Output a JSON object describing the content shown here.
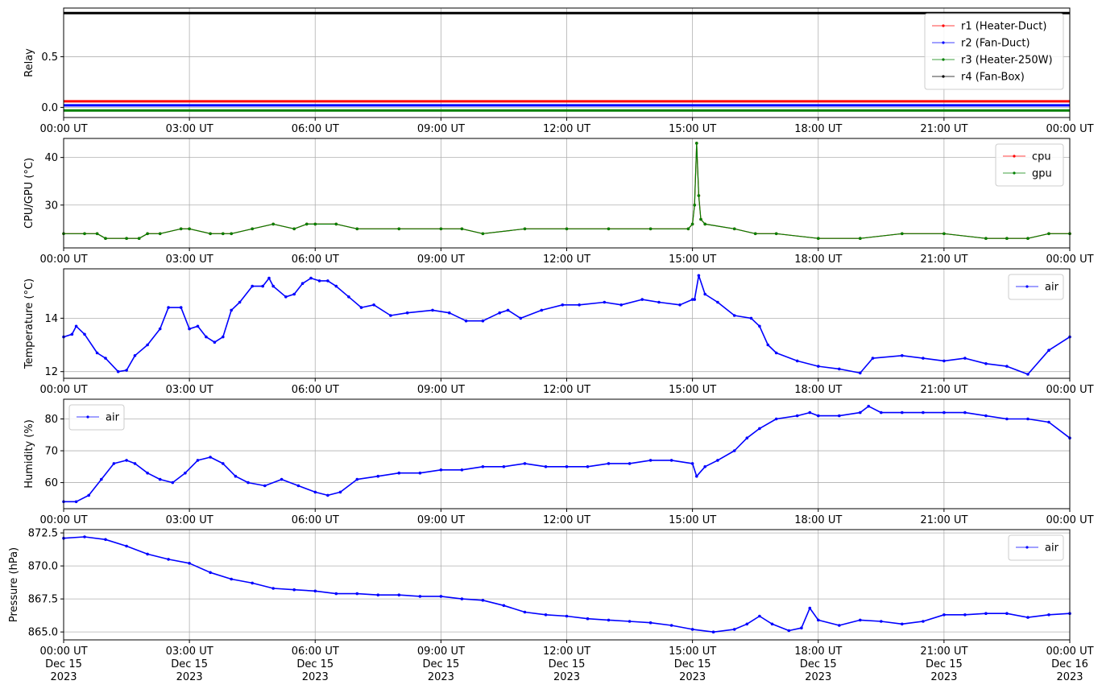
{
  "chart_data": [
    {
      "type": "line",
      "ylabel": "Relay",
      "xlabel": "",
      "title": "",
      "ylim": [
        -0.1,
        0.98
      ],
      "yticks": [
        "0.0",
        "0.5"
      ],
      "ytick_values": [
        0.0,
        0.5
      ],
      "xticks": [
        "00:00 UT",
        "03:00 UT",
        "06:00 UT",
        "09:00 UT",
        "12:00 UT",
        "15:00 UT",
        "18:00 UT",
        "21:00 UT",
        "00:00 UT"
      ],
      "xlim_hours": [
        0,
        24
      ],
      "grid": true,
      "legend_position": "top-right",
      "series": [
        {
          "name": "r1 (Heater-Duct)",
          "color": "#ff0000",
          "x": [
            0,
            24
          ],
          "values": [
            0.06,
            0.06
          ]
        },
        {
          "name": "r2 (Fan-Duct)",
          "color": "#0000ff",
          "x": [
            0,
            24
          ],
          "values": [
            0.02,
            0.02
          ]
        },
        {
          "name": "r3 (Heater-250W)",
          "color": "#008000",
          "x": [
            0,
            24
          ],
          "values": [
            -0.03,
            -0.03
          ]
        },
        {
          "name": "r4 (Fan-Box)",
          "color": "#000000",
          "x": [
            0,
            24
          ],
          "values": [
            0.93,
            0.93
          ]
        }
      ]
    },
    {
      "type": "line",
      "ylabel": "CPU/GPU (°C)",
      "xlabel": "",
      "title": "",
      "ylim": [
        21,
        44
      ],
      "yticks": [
        "30",
        "40"
      ],
      "ytick_values": [
        30,
        40
      ],
      "xticks": [
        "00:00 UT",
        "03:00 UT",
        "06:00 UT",
        "09:00 UT",
        "12:00 UT",
        "15:00 UT",
        "18:00 UT",
        "21:00 UT",
        "00:00 UT"
      ],
      "xlim_hours": [
        0,
        24
      ],
      "grid": true,
      "legend_position": "top-right",
      "series": [
        {
          "name": "cpu",
          "color": "#ff0000",
          "x": [
            0,
            0.5,
            0.8,
            1.0,
            1.5,
            1.8,
            2.0,
            2.3,
            2.8,
            3.0,
            3.5,
            3.8,
            4.0,
            4.5,
            5.0,
            5.5,
            5.8,
            6.0,
            6.5,
            7.0,
            8.0,
            9.0,
            9.5,
            10.0,
            11.0,
            12.0,
            13.0,
            14.0,
            14.9,
            15.0,
            15.05,
            15.1,
            15.15,
            15.2,
            15.3,
            16.0,
            16.5,
            17.0,
            18.0,
            19.0,
            20.0,
            21.0,
            22.0,
            22.5,
            23.0,
            23.5,
            24.0
          ],
          "values": [
            24,
            24,
            24,
            23,
            23,
            23,
            24,
            24,
            25,
            25,
            24,
            24,
            24,
            25,
            26,
            25,
            26,
            26,
            26,
            25,
            25,
            25,
            25,
            24,
            25,
            25,
            25,
            25,
            25,
            26,
            30,
            43,
            32,
            27,
            26,
            25,
            24,
            24,
            23,
            23,
            24,
            24,
            23,
            23,
            23,
            24,
            24
          ]
        },
        {
          "name": "gpu",
          "color": "#008000",
          "x": [
            0,
            0.5,
            0.8,
            1.0,
            1.5,
            1.8,
            2.0,
            2.3,
            2.8,
            3.0,
            3.5,
            3.8,
            4.0,
            4.5,
            5.0,
            5.5,
            5.8,
            6.0,
            6.5,
            7.0,
            8.0,
            9.0,
            9.5,
            10.0,
            11.0,
            12.0,
            13.0,
            14.0,
            14.9,
            15.0,
            15.05,
            15.1,
            15.15,
            15.2,
            15.3,
            16.0,
            16.5,
            17.0,
            18.0,
            19.0,
            20.0,
            21.0,
            22.0,
            22.5,
            23.0,
            23.5,
            24.0
          ],
          "values": [
            24,
            24,
            24,
            23,
            23,
            23,
            24,
            24,
            25,
            25,
            24,
            24,
            24,
            25,
            26,
            25,
            26,
            26,
            26,
            25,
            25,
            25,
            25,
            24,
            25,
            25,
            25,
            25,
            25,
            26,
            30,
            43,
            32,
            27,
            26,
            25,
            24,
            24,
            23,
            23,
            24,
            24,
            23,
            23,
            23,
            24,
            24
          ]
        }
      ]
    },
    {
      "type": "line",
      "ylabel": "Temperature (°C)",
      "xlabel": "",
      "title": "",
      "ylim": [
        11.75,
        15.85
      ],
      "yticks": [
        "12",
        "14"
      ],
      "ytick_values": [
        12,
        14
      ],
      "xticks": [
        "00:00 UT",
        "03:00 UT",
        "06:00 UT",
        "09:00 UT",
        "12:00 UT",
        "15:00 UT",
        "18:00 UT",
        "21:00 UT",
        "00:00 UT"
      ],
      "xlim_hours": [
        0,
        24
      ],
      "grid": true,
      "legend_position": "top-right",
      "series": [
        {
          "name": "air",
          "color": "#0000ff",
          "x": [
            0,
            0.2,
            0.3,
            0.5,
            0.8,
            1.0,
            1.3,
            1.5,
            1.7,
            2.0,
            2.3,
            2.5,
            2.8,
            3.0,
            3.2,
            3.4,
            3.6,
            3.8,
            4.0,
            4.2,
            4.5,
            4.75,
            4.9,
            5.0,
            5.3,
            5.5,
            5.7,
            5.9,
            6.1,
            6.3,
            6.5,
            6.8,
            7.1,
            7.4,
            7.8,
            8.2,
            8.8,
            9.2,
            9.6,
            10.0,
            10.4,
            10.6,
            10.9,
            11.4,
            11.9,
            12.3,
            12.9,
            13.3,
            13.8,
            14.2,
            14.7,
            15.0,
            15.05,
            15.15,
            15.3,
            15.6,
            16.0,
            16.4,
            16.6,
            16.8,
            17.0,
            17.5,
            18.0,
            18.5,
            19.0,
            19.3,
            20.0,
            20.5,
            21.0,
            21.5,
            22.0,
            22.5,
            23.0,
            23.5,
            24.0
          ],
          "values": [
            13.3,
            13.4,
            13.7,
            13.4,
            12.7,
            12.5,
            12.0,
            12.05,
            12.6,
            13.0,
            13.6,
            14.4,
            14.4,
            13.6,
            13.7,
            13.3,
            13.1,
            13.3,
            14.3,
            14.6,
            15.2,
            15.2,
            15.5,
            15.2,
            14.8,
            14.9,
            15.3,
            15.5,
            15.4,
            15.4,
            15.2,
            14.8,
            14.4,
            14.5,
            14.1,
            14.2,
            14.3,
            14.2,
            13.9,
            13.9,
            14.2,
            14.3,
            14.0,
            14.3,
            14.5,
            14.5,
            14.6,
            14.5,
            14.7,
            14.6,
            14.5,
            14.7,
            14.7,
            15.6,
            14.9,
            14.6,
            14.1,
            14.0,
            13.7,
            13.0,
            12.7,
            12.4,
            12.2,
            12.1,
            11.95,
            12.5,
            12.6,
            12.5,
            12.4,
            12.5,
            12.3,
            12.2,
            11.9,
            12.8,
            13.3
          ]
        }
      ]
    },
    {
      "type": "line",
      "ylabel": "Humidity (%)",
      "xlabel": "",
      "title": "",
      "ylim": [
        51.8,
        86.2
      ],
      "yticks": [
        "60",
        "70",
        "80"
      ],
      "ytick_values": [
        60,
        70,
        80
      ],
      "xticks": [
        "00:00 UT",
        "03:00 UT",
        "06:00 UT",
        "09:00 UT",
        "12:00 UT",
        "15:00 UT",
        "18:00 UT",
        "21:00 UT",
        "00:00 UT"
      ],
      "xlim_hours": [
        0,
        24
      ],
      "grid": true,
      "legend_position": "top-left",
      "series": [
        {
          "name": "air",
          "color": "#0000ff",
          "x": [
            0,
            0.3,
            0.6,
            0.9,
            1.2,
            1.5,
            1.7,
            2.0,
            2.3,
            2.6,
            2.9,
            3.2,
            3.5,
            3.8,
            4.1,
            4.4,
            4.8,
            5.2,
            5.6,
            6.0,
            6.3,
            6.6,
            7.0,
            7.5,
            8.0,
            8.5,
            9.0,
            9.5,
            10.0,
            10.5,
            11.0,
            11.5,
            12.0,
            12.5,
            13.0,
            13.5,
            14.0,
            14.5,
            15.0,
            15.1,
            15.3,
            15.6,
            16.0,
            16.3,
            16.6,
            17.0,
            17.5,
            17.8,
            18.0,
            18.5,
            19.0,
            19.2,
            19.5,
            20.0,
            20.5,
            21.0,
            21.5,
            22.0,
            22.5,
            23.0,
            23.5,
            24.0
          ],
          "values": [
            54,
            54,
            56,
            61,
            66,
            67,
            66,
            63,
            61,
            60,
            63,
            67,
            68,
            66,
            62,
            60,
            59,
            61,
            59,
            57,
            56,
            57,
            61,
            62,
            63,
            63,
            64,
            64,
            65,
            65,
            66,
            65,
            65,
            65,
            66,
            66,
            67,
            67,
            66,
            62,
            65,
            67,
            70,
            74,
            77,
            80,
            81,
            82,
            81,
            81,
            82,
            84,
            82,
            82,
            82,
            82,
            82,
            81,
            80,
            80,
            79,
            74
          ]
        }
      ]
    },
    {
      "type": "line",
      "ylabel": "Pressure (hPa)",
      "xlabel": "",
      "title": "",
      "ylim": [
        864.4,
        872.75
      ],
      "yticks": [
        "865.0",
        "867.5",
        "870.0",
        "872.5"
      ],
      "ytick_values": [
        865.0,
        867.5,
        870.0,
        872.5
      ],
      "xticks": [
        "00:00 UT\nDec 15\n2023",
        "03:00 UT\nDec 15\n2023",
        "06:00 UT\nDec 15\n2023",
        "09:00 UT\nDec 15\n2023",
        "12:00 UT\nDec 15\n2023",
        "15:00 UT\nDec 15\n2023",
        "18:00 UT\nDec 15\n2023",
        "21:00 UT\nDec 15\n2023",
        "00:00 UT\nDec 16\n2023"
      ],
      "xlim_hours": [
        0,
        24
      ],
      "grid": true,
      "legend_position": "top-right",
      "series": [
        {
          "name": "air",
          "color": "#0000ff",
          "x": [
            0,
            0.5,
            1.0,
            1.5,
            2.0,
            2.5,
            3.0,
            3.5,
            4.0,
            4.5,
            5.0,
            5.5,
            6.0,
            6.5,
            7.0,
            7.5,
            8.0,
            8.5,
            9.0,
            9.5,
            10.0,
            10.5,
            11.0,
            11.5,
            12.0,
            12.5,
            13.0,
            13.5,
            14.0,
            14.5,
            15.0,
            15.5,
            16.0,
            16.3,
            16.6,
            16.9,
            17.3,
            17.6,
            17.8,
            18.0,
            18.5,
            19.0,
            19.5,
            20.0,
            20.5,
            21.0,
            21.5,
            22.0,
            22.5,
            23.0,
            23.5,
            24.0
          ],
          "values": [
            872.1,
            872.2,
            872.0,
            871.5,
            870.9,
            870.5,
            870.2,
            869.5,
            869.0,
            868.7,
            868.3,
            868.2,
            868.1,
            867.9,
            867.9,
            867.8,
            867.8,
            867.7,
            867.7,
            867.5,
            867.4,
            867.0,
            866.5,
            866.3,
            866.2,
            866.0,
            865.9,
            865.8,
            865.7,
            865.5,
            865.2,
            865.0,
            865.2,
            865.6,
            866.2,
            865.6,
            865.1,
            865.3,
            866.8,
            865.9,
            865.5,
            865.9,
            865.8,
            865.6,
            865.8,
            866.3,
            866.3,
            866.4,
            866.4,
            866.1,
            866.3,
            866.4
          ]
        }
      ]
    }
  ]
}
